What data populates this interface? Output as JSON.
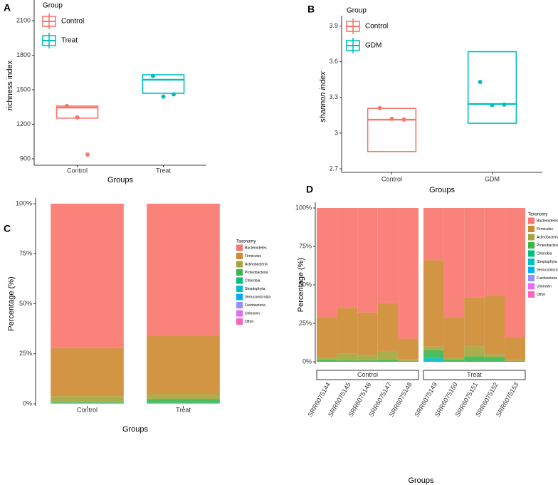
{
  "chart_data": [
    {
      "type": "box",
      "panel": "A",
      "legend_title": "Group",
      "xlabel": "Groups",
      "ylabel": "richness index",
      "ylim": [
        844,
        2230
      ],
      "yticks": [
        900,
        1200,
        1500,
        1800,
        2100
      ],
      "series": [
        {
          "name": "Control",
          "color": "#F8766D",
          "q1": 1253,
          "median": 1345,
          "q3": 1358,
          "values": [
            1358,
            1259,
            937
          ]
        },
        {
          "name": "Treat",
          "color": "#00BFC4",
          "q1": 1469,
          "median": 1587,
          "q3": 1630,
          "values": [
            1620,
            1440,
            1460
          ]
        }
      ]
    },
    {
      "type": "box",
      "panel": "B",
      "legend_title": "Group",
      "xlabel": "Groups",
      "ylabel": "shannon index",
      "ylim": [
        2.67,
        3.94
      ],
      "yticks": [
        2.7,
        3.0,
        3.3,
        3.6,
        3.9
      ],
      "series": [
        {
          "name": "Control",
          "color": "#F8766D",
          "q1": 2.845,
          "median": 3.113,
          "q3": 3.208,
          "values": [
            3.21,
            3.12,
            3.115
          ]
        },
        {
          "name": "GDM",
          "color": "#00BFC4",
          "q1": 3.083,
          "median": 3.245,
          "q3": 3.685,
          "values": [
            3.43,
            3.235,
            3.24
          ]
        }
      ]
    },
    {
      "type": "stacked_bar",
      "panel": "C",
      "legend_title": "Taxonomy",
      "xlabel": "Groups",
      "ylabel": "Percentage (%)",
      "categories": [
        "Control",
        "Treat"
      ],
      "ylim": [
        0,
        100
      ],
      "yticks": [
        {
          "value": 0,
          "label": "0%"
        },
        {
          "value": 25,
          "label": "25%"
        },
        {
          "value": 50,
          "label": "50%"
        },
        {
          "value": 75,
          "label": "75%"
        },
        {
          "value": 100,
          "label": "100%"
        }
      ],
      "series": [
        {
          "name": "Bacteroidetes",
          "color": "#F8766D",
          "values": [
            72.2,
            66.2
          ]
        },
        {
          "name": "Firmicutes",
          "color": "#CD8A2F",
          "values": [
            24,
            29
          ]
        },
        {
          "name": "Actinobacteria",
          "color": "#A3A53A",
          "values": [
            3,
            2.5
          ]
        },
        {
          "name": "Proteobacteria",
          "color": "#39B54A",
          "values": [
            0.3,
            1.8
          ]
        },
        {
          "name": "Chlorobia",
          "color": "#00BF7D",
          "values": [
            0.1,
            0.1
          ]
        },
        {
          "name": "Streptophyta",
          "color": "#00BFC4",
          "values": [
            0.1,
            0.1
          ]
        },
        {
          "name": "Verrucomicrobia",
          "color": "#00B0F6",
          "values": [
            0.1,
            0.1
          ]
        },
        {
          "name": "Fusobacteria",
          "color": "#9590FF",
          "values": [
            0.1,
            0.1
          ]
        },
        {
          "name": "Unknown",
          "color": "#E76BF3",
          "values": [
            0.05,
            0.05
          ]
        },
        {
          "name": "Other",
          "color": "#FF62BC",
          "values": [
            0.05,
            0.05
          ]
        }
      ]
    },
    {
      "type": "stacked_bar",
      "panel": "D",
      "legend_title": "Taxonomy",
      "xlabel": "Groups",
      "ylabel": "Percentage (%)",
      "facets": [
        {
          "name": "Control",
          "categories": [
            "SRR6075144",
            "SRR6075145",
            "SRR6075146",
            "SRR6075147",
            "SRR6075148"
          ]
        },
        {
          "name": "Treat",
          "categories": [
            "SRR6075149",
            "SRR6075150",
            "SRR6075151",
            "SRR6075152",
            "SRR6075153"
          ]
        }
      ],
      "ylim": [
        0,
        100
      ],
      "yticks": [
        {
          "value": 0,
          "label": "0%"
        },
        {
          "value": 25,
          "label": "25%"
        },
        {
          "value": 50,
          "label": "50%"
        },
        {
          "value": 75,
          "label": "75%"
        },
        {
          "value": 100,
          "label": "100%"
        }
      ],
      "series": [
        {
          "name": "Bacteroidetes",
          "color": "#F8766D",
          "values": [
            71,
            65,
            68,
            62,
            85,
            34,
            71,
            58,
            57,
            84
          ]
        },
        {
          "name": "Firmicutes",
          "color": "#CD8A2F",
          "values": [
            26,
            29.5,
            27.5,
            31,
            13.5,
            56,
            26,
            32,
            38,
            15
          ]
        },
        {
          "name": "Actinobacteria",
          "color": "#A3A53A",
          "values": [
            1.5,
            4.5,
            3.5,
            5.5,
            1,
            2.5,
            1.5,
            6.5,
            2,
            0.5
          ]
        },
        {
          "name": "Proteobacteria",
          "color": "#39B54A",
          "values": [
            1.5,
            1,
            1,
            1.5,
            0.5,
            5,
            1.5,
            3.5,
            3,
            0.5
          ]
        },
        {
          "name": "Chlorobia",
          "color": "#00BF7D",
          "values": [
            0,
            0,
            0,
            0,
            0,
            0,
            0,
            0,
            0,
            0
          ]
        },
        {
          "name": "Streptophyta",
          "color": "#00BFC4",
          "values": [
            0,
            0,
            0,
            0,
            0,
            2.5,
            0,
            0,
            0,
            0
          ]
        },
        {
          "name": "Verrucomicrobia",
          "color": "#00B0F6",
          "values": [
            0,
            0,
            0,
            0,
            0,
            0,
            0,
            0,
            0,
            0
          ]
        },
        {
          "name": "Fusobacteria",
          "color": "#9590FF",
          "values": [
            0,
            0,
            0,
            0,
            0,
            0,
            0,
            0,
            0,
            0
          ]
        },
        {
          "name": "Unknown",
          "color": "#E76BF3",
          "values": [
            0,
            0,
            0,
            0,
            0,
            0,
            0,
            0,
            0,
            0
          ]
        },
        {
          "name": "Other",
          "color": "#FF62BC",
          "values": [
            0,
            0,
            0,
            0,
            0,
            0,
            0,
            0,
            0,
            0
          ]
        }
      ]
    }
  ]
}
